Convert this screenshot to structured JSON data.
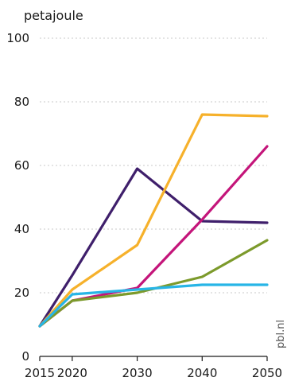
{
  "chart_data": {
    "type": "line",
    "ylabel": "petajoule",
    "source": "pbl.nl",
    "x": [
      2015,
      2020,
      2030,
      2040,
      2050
    ],
    "ylim": [
      0,
      100
    ],
    "yticks": [
      0,
      20,
      40,
      60,
      80,
      100
    ],
    "grid": true,
    "series": [
      {
        "color": "#3f1f6b",
        "values": [
          9.5,
          25.5,
          59,
          42.5,
          42
        ]
      },
      {
        "color": "#f6b12b",
        "values": [
          9.5,
          21,
          35,
          76,
          75.5
        ]
      },
      {
        "color": "#c4157a",
        "values": [
          9.5,
          17.5,
          21.5,
          43,
          66
        ]
      },
      {
        "color": "#7c9a2b",
        "values": [
          9.5,
          17.5,
          20,
          25,
          36.5
        ]
      },
      {
        "color": "#27b5e6",
        "values": [
          9.5,
          19.5,
          21,
          22.5,
          22.5
        ]
      }
    ]
  }
}
